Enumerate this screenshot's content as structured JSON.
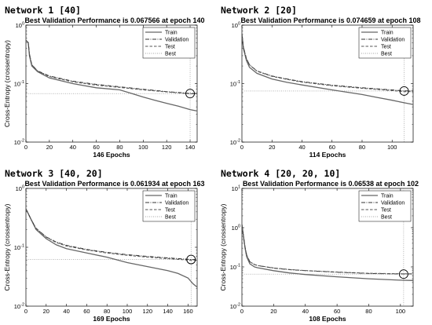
{
  "chart_data": [
    {
      "type": "line",
      "network_label": "Network 1 [40]",
      "title": "Best Validation Performance is 0.067566 at epoch 140",
      "xlabel": "146 Epochs",
      "ylabel": "Cross-Entropy  (crossentropy)",
      "y_scale": "log",
      "xlim": [
        0,
        146
      ],
      "ylim": [
        0.01,
        1
      ],
      "x_ticks": [
        "0",
        "20",
        "40",
        "60",
        "80",
        "100",
        "120",
        "140"
      ],
      "y_ticks": [
        "10^-2",
        "10^-1",
        "10^0"
      ],
      "legend_position": "top-right",
      "best": {
        "epoch": 140,
        "value": 0.067566
      },
      "series": [
        {
          "name": "Train",
          "style": "solid",
          "x": [
            0,
            2,
            3,
            5,
            10,
            20,
            40,
            60,
            80,
            90,
            100,
            110,
            120,
            130,
            140,
            146
          ],
          "y": [
            0.55,
            0.5,
            0.3,
            0.2,
            0.16,
            0.125,
            0.1,
            0.085,
            0.078,
            0.068,
            0.059,
            0.052,
            0.046,
            0.041,
            0.036,
            0.034
          ]
        },
        {
          "name": "Validation",
          "style": "dashdot",
          "x": [
            0,
            2,
            3,
            5,
            10,
            20,
            40,
            60,
            80,
            100,
            120,
            140,
            146
          ],
          "y": [
            0.55,
            0.5,
            0.32,
            0.21,
            0.165,
            0.135,
            0.11,
            0.097,
            0.088,
            0.08,
            0.073,
            0.068,
            0.068
          ]
        },
        {
          "name": "Test",
          "style": "dashed",
          "x": [
            0,
            2,
            3,
            5,
            10,
            20,
            40,
            60,
            80,
            100,
            120,
            140,
            146
          ],
          "y": [
            0.55,
            0.5,
            0.32,
            0.21,
            0.163,
            0.132,
            0.107,
            0.094,
            0.086,
            0.078,
            0.072,
            0.067,
            0.067
          ]
        }
      ]
    },
    {
      "type": "line",
      "network_label": "Network 2 [20]",
      "title": "Best Validation Performance is 0.074659 at epoch 108",
      "xlabel": "114 Epochs",
      "ylabel": "",
      "y_scale": "log",
      "xlim": [
        0,
        114
      ],
      "ylim": [
        0.01,
        1
      ],
      "x_ticks": [
        "0",
        "20",
        "40",
        "60",
        "80",
        "100"
      ],
      "y_ticks": [
        "10^-2",
        "10^-1",
        "10^0"
      ],
      "legend_position": "top-right",
      "best": {
        "epoch": 108,
        "value": 0.074659
      },
      "series": [
        {
          "name": "Train",
          "style": "solid",
          "x": [
            0,
            1,
            3,
            5,
            10,
            20,
            30,
            40,
            60,
            80,
            90,
            100,
            108,
            114
          ],
          "y": [
            0.7,
            0.4,
            0.25,
            0.19,
            0.15,
            0.12,
            0.105,
            0.095,
            0.078,
            0.065,
            0.058,
            0.052,
            0.047,
            0.044
          ]
        },
        {
          "name": "Validation",
          "style": "dashdot",
          "x": [
            0,
            1,
            3,
            5,
            10,
            20,
            30,
            40,
            60,
            80,
            100,
            108,
            114
          ],
          "y": [
            0.7,
            0.42,
            0.27,
            0.21,
            0.165,
            0.135,
            0.12,
            0.108,
            0.094,
            0.085,
            0.078,
            0.075,
            0.075
          ]
        },
        {
          "name": "Test",
          "style": "dashed",
          "x": [
            0,
            1,
            3,
            5,
            10,
            20,
            30,
            40,
            60,
            80,
            100,
            108,
            114
          ],
          "y": [
            0.7,
            0.42,
            0.27,
            0.21,
            0.163,
            0.133,
            0.118,
            0.106,
            0.092,
            0.083,
            0.076,
            0.073,
            0.073
          ]
        }
      ]
    },
    {
      "type": "line",
      "network_label": "Network 3 [40, 20]",
      "title": "Best Validation Performance is 0.061934 at epoch 163",
      "xlabel": "169 Epochs",
      "ylabel": "Cross-Entropy  (crossentropy)",
      "y_scale": "log",
      "xlim": [
        0,
        169
      ],
      "ylim": [
        0.01,
        1
      ],
      "x_ticks": [
        "0",
        "20",
        "40",
        "60",
        "80",
        "100",
        "120",
        "140",
        "160"
      ],
      "y_ticks": [
        "10^-2",
        "10^-1",
        "10^0"
      ],
      "legend_position": "top-right",
      "best": {
        "epoch": 163,
        "value": 0.061934
      },
      "series": [
        {
          "name": "Train",
          "style": "solid",
          "x": [
            0,
            5,
            10,
            20,
            30,
            40,
            60,
            80,
            100,
            120,
            140,
            150,
            160,
            165,
            169
          ],
          "y": [
            0.45,
            0.3,
            0.2,
            0.14,
            0.11,
            0.095,
            0.08,
            0.068,
            0.055,
            0.047,
            0.04,
            0.036,
            0.03,
            0.024,
            0.021
          ]
        },
        {
          "name": "Validation",
          "style": "dashdot",
          "x": [
            0,
            5,
            10,
            20,
            30,
            40,
            60,
            80,
            100,
            120,
            140,
            163,
            169
          ],
          "y": [
            0.45,
            0.3,
            0.21,
            0.15,
            0.123,
            0.108,
            0.092,
            0.082,
            0.075,
            0.07,
            0.066,
            0.062,
            0.062
          ]
        },
        {
          "name": "Test",
          "style": "dashed",
          "x": [
            0,
            5,
            10,
            20,
            30,
            40,
            60,
            80,
            100,
            120,
            140,
            163,
            169
          ],
          "y": [
            0.45,
            0.3,
            0.21,
            0.148,
            0.12,
            0.105,
            0.09,
            0.08,
            0.073,
            0.068,
            0.064,
            0.06,
            0.06
          ]
        }
      ]
    },
    {
      "type": "line",
      "network_label": "Network 4 [20, 20, 10]",
      "title": "Best Validation Performance is 0.06538 at epoch 102",
      "xlabel": "108 Epochs",
      "ylabel": "Cross-Entropy  (crossentropy)",
      "y_scale": "log",
      "xlim": [
        0,
        108
      ],
      "ylim": [
        0.01,
        10
      ],
      "x_ticks": [
        "0",
        "20",
        "40",
        "60",
        "80",
        "100"
      ],
      "y_ticks": [
        "10^-2",
        "10^-1",
        "10^0",
        "10^1"
      ],
      "legend_position": "top-right",
      "best": {
        "epoch": 102,
        "value": 0.06538
      },
      "series": [
        {
          "name": "Train",
          "style": "solid",
          "x": [
            0,
            1,
            2,
            3,
            5,
            8,
            10,
            20,
            30,
            40,
            60,
            80,
            100,
            108
          ],
          "y": [
            1.2,
            0.6,
            0.3,
            0.18,
            0.12,
            0.1,
            0.095,
            0.08,
            0.07,
            0.064,
            0.056,
            0.05,
            0.046,
            0.045
          ]
        },
        {
          "name": "Validation",
          "style": "dashdot",
          "x": [
            0,
            1,
            2,
            3,
            5,
            8,
            10,
            20,
            30,
            40,
            60,
            80,
            100,
            108
          ],
          "y": [
            1.2,
            0.6,
            0.32,
            0.2,
            0.135,
            0.115,
            0.108,
            0.093,
            0.085,
            0.08,
            0.073,
            0.068,
            0.066,
            0.066
          ]
        },
        {
          "name": "Test",
          "style": "dashed",
          "x": [
            0,
            1,
            2,
            3,
            5,
            8,
            10,
            20,
            30,
            40,
            60,
            80,
            100,
            108
          ],
          "y": [
            1.2,
            0.6,
            0.32,
            0.2,
            0.135,
            0.115,
            0.108,
            0.094,
            0.086,
            0.081,
            0.074,
            0.069,
            0.067,
            0.067
          ]
        }
      ]
    }
  ],
  "legend_labels": [
    "Train",
    "Validation",
    "Test",
    "Best"
  ],
  "colors": {
    "train": "#666666",
    "validation": "#333333",
    "test": "#555555",
    "best": "#888888",
    "axis": "#000000"
  }
}
